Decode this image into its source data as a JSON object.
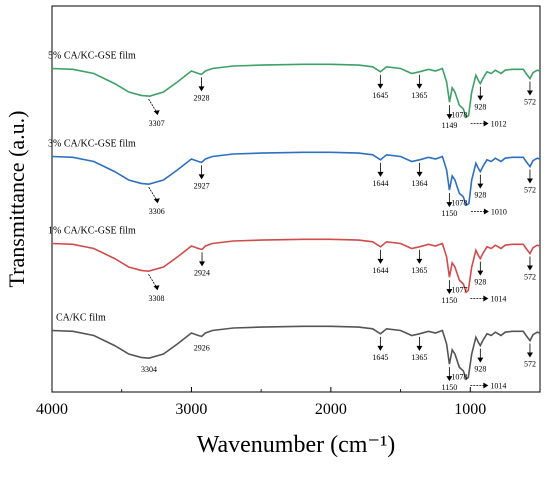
{
  "chart_data": {
    "type": "line",
    "xlabel": "Wavenumber (cm⁻¹)",
    "ylabel": "Transmittance (a.u.)",
    "xlim": [
      4000,
      500
    ],
    "x_reversed": true,
    "xticks": [
      {
        "value": 4000,
        "label": "4000"
      },
      {
        "value": 3000,
        "label": "3000"
      },
      {
        "value": 2000,
        "label": "2000"
      },
      {
        "value": 1000,
        "label": "1000"
      }
    ],
    "grid": false,
    "series": [
      {
        "name": "5% CA/KC-GSE film",
        "color": "#3fa066",
        "points": [
          [
            4000,
            0.78
          ],
          [
            3850,
            0.77
          ],
          [
            3700,
            0.72
          ],
          [
            3550,
            0.6
          ],
          [
            3450,
            0.5
          ],
          [
            3360,
            0.46
          ],
          [
            3300,
            0.45
          ],
          [
            3200,
            0.5
          ],
          [
            3100,
            0.62
          ],
          [
            3000,
            0.75
          ],
          [
            2950,
            0.72
          ],
          [
            2928,
            0.71
          ],
          [
            2900,
            0.75
          ],
          [
            2850,
            0.78
          ],
          [
            2700,
            0.81
          ],
          [
            2500,
            0.82
          ],
          [
            2200,
            0.83
          ],
          [
            2000,
            0.83
          ],
          [
            1800,
            0.82
          ],
          [
            1700,
            0.8
          ],
          [
            1645,
            0.74
          ],
          [
            1600,
            0.8
          ],
          [
            1500,
            0.78
          ],
          [
            1420,
            0.72
          ],
          [
            1365,
            0.74
          ],
          [
            1300,
            0.77
          ],
          [
            1250,
            0.75
          ],
          [
            1200,
            0.78
          ],
          [
            1170,
            0.62
          ],
          [
            1149,
            0.38
          ],
          [
            1130,
            0.55
          ],
          [
            1110,
            0.5
          ],
          [
            1078,
            0.34
          ],
          [
            1050,
            0.3
          ],
          [
            1030,
            0.2
          ],
          [
            1012,
            0.22
          ],
          [
            990,
            0.5
          ],
          [
            960,
            0.7
          ],
          [
            940,
            0.63
          ],
          [
            928,
            0.6
          ],
          [
            910,
            0.66
          ],
          [
            880,
            0.74
          ],
          [
            850,
            0.72
          ],
          [
            820,
            0.76
          ],
          [
            780,
            0.72
          ],
          [
            750,
            0.76
          ],
          [
            700,
            0.77
          ],
          [
            620,
            0.77
          ],
          [
            600,
            0.72
          ],
          [
            572,
            0.66
          ],
          [
            550,
            0.73
          ],
          [
            520,
            0.76
          ],
          [
            500,
            0.75
          ]
        ]
      },
      {
        "name": "3% CA/KC-GSE film",
        "color": "#2e6fc2",
        "points": [
          [
            4000,
            0.78
          ],
          [
            3850,
            0.77
          ],
          [
            3700,
            0.72
          ],
          [
            3550,
            0.6
          ],
          [
            3450,
            0.5
          ],
          [
            3360,
            0.46
          ],
          [
            3306,
            0.45
          ],
          [
            3200,
            0.5
          ],
          [
            3100,
            0.62
          ],
          [
            3000,
            0.75
          ],
          [
            2950,
            0.72
          ],
          [
            2927,
            0.71
          ],
          [
            2900,
            0.75
          ],
          [
            2850,
            0.78
          ],
          [
            2700,
            0.81
          ],
          [
            2500,
            0.82
          ],
          [
            2200,
            0.83
          ],
          [
            2000,
            0.83
          ],
          [
            1800,
            0.82
          ],
          [
            1700,
            0.8
          ],
          [
            1644,
            0.74
          ],
          [
            1600,
            0.8
          ],
          [
            1500,
            0.78
          ],
          [
            1420,
            0.72
          ],
          [
            1364,
            0.74
          ],
          [
            1300,
            0.77
          ],
          [
            1250,
            0.75
          ],
          [
            1200,
            0.78
          ],
          [
            1170,
            0.62
          ],
          [
            1150,
            0.38
          ],
          [
            1130,
            0.55
          ],
          [
            1110,
            0.5
          ],
          [
            1078,
            0.34
          ],
          [
            1050,
            0.3
          ],
          [
            1030,
            0.2
          ],
          [
            1010,
            0.22
          ],
          [
            990,
            0.5
          ],
          [
            960,
            0.7
          ],
          [
            940,
            0.63
          ],
          [
            928,
            0.6
          ],
          [
            910,
            0.66
          ],
          [
            880,
            0.74
          ],
          [
            850,
            0.72
          ],
          [
            820,
            0.76
          ],
          [
            780,
            0.72
          ],
          [
            750,
            0.76
          ],
          [
            700,
            0.77
          ],
          [
            620,
            0.77
          ],
          [
            600,
            0.72
          ],
          [
            572,
            0.66
          ],
          [
            550,
            0.73
          ],
          [
            520,
            0.76
          ],
          [
            500,
            0.75
          ]
        ]
      },
      {
        "name": "1% CA/KC-GSE film",
        "color": "#d24b4b",
        "points": [
          [
            4000,
            0.78
          ],
          [
            3850,
            0.77
          ],
          [
            3700,
            0.72
          ],
          [
            3550,
            0.6
          ],
          [
            3450,
            0.5
          ],
          [
            3360,
            0.46
          ],
          [
            3308,
            0.45
          ],
          [
            3200,
            0.5
          ],
          [
            3100,
            0.62
          ],
          [
            3000,
            0.75
          ],
          [
            2950,
            0.72
          ],
          [
            2924,
            0.71
          ],
          [
            2900,
            0.75
          ],
          [
            2850,
            0.78
          ],
          [
            2700,
            0.81
          ],
          [
            2500,
            0.82
          ],
          [
            2200,
            0.83
          ],
          [
            2000,
            0.83
          ],
          [
            1800,
            0.82
          ],
          [
            1700,
            0.8
          ],
          [
            1644,
            0.74
          ],
          [
            1600,
            0.8
          ],
          [
            1500,
            0.78
          ],
          [
            1420,
            0.72
          ],
          [
            1365,
            0.74
          ],
          [
            1300,
            0.77
          ],
          [
            1250,
            0.75
          ],
          [
            1200,
            0.78
          ],
          [
            1170,
            0.62
          ],
          [
            1150,
            0.38
          ],
          [
            1130,
            0.55
          ],
          [
            1110,
            0.5
          ],
          [
            1077,
            0.34
          ],
          [
            1050,
            0.3
          ],
          [
            1030,
            0.2
          ],
          [
            1014,
            0.22
          ],
          [
            990,
            0.5
          ],
          [
            960,
            0.7
          ],
          [
            940,
            0.63
          ],
          [
            928,
            0.6
          ],
          [
            910,
            0.66
          ],
          [
            880,
            0.74
          ],
          [
            850,
            0.72
          ],
          [
            820,
            0.76
          ],
          [
            780,
            0.72
          ],
          [
            750,
            0.76
          ],
          [
            700,
            0.77
          ],
          [
            620,
            0.77
          ],
          [
            600,
            0.72
          ],
          [
            572,
            0.66
          ],
          [
            550,
            0.73
          ],
          [
            520,
            0.76
          ],
          [
            500,
            0.75
          ]
        ]
      },
      {
        "name": "CA/KC film",
        "color": "#555555",
        "points": [
          [
            4000,
            0.78
          ],
          [
            3850,
            0.77
          ],
          [
            3700,
            0.72
          ],
          [
            3550,
            0.6
          ],
          [
            3450,
            0.5
          ],
          [
            3360,
            0.46
          ],
          [
            3304,
            0.45
          ],
          [
            3200,
            0.5
          ],
          [
            3100,
            0.62
          ],
          [
            3000,
            0.75
          ],
          [
            2950,
            0.72
          ],
          [
            2926,
            0.71
          ],
          [
            2900,
            0.75
          ],
          [
            2850,
            0.78
          ],
          [
            2700,
            0.81
          ],
          [
            2500,
            0.82
          ],
          [
            2200,
            0.83
          ],
          [
            2000,
            0.83
          ],
          [
            1800,
            0.82
          ],
          [
            1700,
            0.8
          ],
          [
            1645,
            0.74
          ],
          [
            1600,
            0.8
          ],
          [
            1500,
            0.78
          ],
          [
            1420,
            0.72
          ],
          [
            1365,
            0.74
          ],
          [
            1300,
            0.77
          ],
          [
            1250,
            0.75
          ],
          [
            1200,
            0.78
          ],
          [
            1170,
            0.62
          ],
          [
            1150,
            0.38
          ],
          [
            1130,
            0.55
          ],
          [
            1110,
            0.5
          ],
          [
            1078,
            0.34
          ],
          [
            1050,
            0.3
          ],
          [
            1030,
            0.2
          ],
          [
            1014,
            0.22
          ],
          [
            990,
            0.5
          ],
          [
            960,
            0.7
          ],
          [
            940,
            0.63
          ],
          [
            928,
            0.6
          ],
          [
            910,
            0.66
          ],
          [
            880,
            0.74
          ],
          [
            850,
            0.72
          ],
          [
            820,
            0.76
          ],
          [
            780,
            0.72
          ],
          [
            750,
            0.76
          ],
          [
            700,
            0.77
          ],
          [
            620,
            0.77
          ],
          [
            600,
            0.72
          ],
          [
            572,
            0.66
          ],
          [
            550,
            0.73
          ],
          [
            520,
            0.76
          ],
          [
            500,
            0.75
          ]
        ]
      }
    ],
    "annotations": [
      {
        "series": 0,
        "labels": [
          {
            "text": "3307",
            "x": 3307,
            "style": "diagonal"
          },
          {
            "text": "2928",
            "x": 2928,
            "style": "down"
          },
          {
            "text": "1645",
            "x": 1645,
            "style": "down"
          },
          {
            "text": "1365",
            "x": 1365,
            "style": "down"
          },
          {
            "text": "1149",
            "x": 1149,
            "style": "down"
          },
          {
            "text": "1078",
            "x": 1078,
            "style": "below"
          },
          {
            "text": "1012",
            "x": 1012,
            "style": "right"
          },
          {
            "text": "928",
            "x": 928,
            "style": "down"
          },
          {
            "text": "572",
            "x": 572,
            "style": "down"
          }
        ]
      },
      {
        "series": 1,
        "labels": [
          {
            "text": "3306",
            "x": 3306,
            "style": "diagonal"
          },
          {
            "text": "2927",
            "x": 2927,
            "style": "down"
          },
          {
            "text": "1644",
            "x": 1644,
            "style": "down"
          },
          {
            "text": "1364",
            "x": 1364,
            "style": "down"
          },
          {
            "text": "1150",
            "x": 1150,
            "style": "down"
          },
          {
            "text": "1078",
            "x": 1078,
            "style": "below"
          },
          {
            "text": "1010",
            "x": 1010,
            "style": "right"
          },
          {
            "text": "928",
            "x": 928,
            "style": "down"
          },
          {
            "text": "572",
            "x": 572,
            "style": "down"
          }
        ]
      },
      {
        "series": 2,
        "labels": [
          {
            "text": "3308",
            "x": 3308,
            "style": "diagonal"
          },
          {
            "text": "2924",
            "x": 2924,
            "style": "down"
          },
          {
            "text": "1644",
            "x": 1644,
            "style": "down"
          },
          {
            "text": "1365",
            "x": 1365,
            "style": "down"
          },
          {
            "text": "1150",
            "x": 1150,
            "style": "down"
          },
          {
            "text": "1077",
            "x": 1077,
            "style": "below"
          },
          {
            "text": "1014",
            "x": 1014,
            "style": "right"
          },
          {
            "text": "928",
            "x": 928,
            "style": "down"
          },
          {
            "text": "572",
            "x": 572,
            "style": "down"
          }
        ]
      },
      {
        "series": 3,
        "labels": [
          {
            "text": "3304",
            "x": 3304,
            "style": "plain"
          },
          {
            "text": "2926",
            "x": 2926,
            "style": "plain"
          },
          {
            "text": "1645",
            "x": 1645,
            "style": "down"
          },
          {
            "text": "1365",
            "x": 1365,
            "style": "down"
          },
          {
            "text": "1150",
            "x": 1150,
            "style": "down"
          },
          {
            "text": "1078",
            "x": 1078,
            "style": "below"
          },
          {
            "text": "1014",
            "x": 1014,
            "style": "right"
          },
          {
            "text": "928",
            "x": 928,
            "style": "down"
          },
          {
            "text": "572",
            "x": 572,
            "style": "down"
          }
        ]
      }
    ]
  }
}
